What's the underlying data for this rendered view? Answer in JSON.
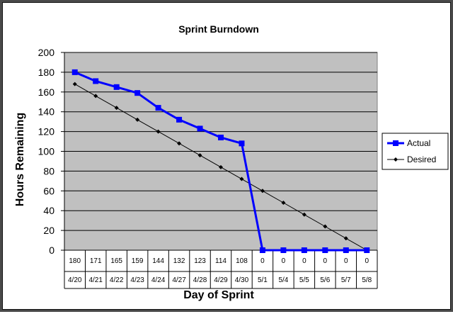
{
  "chart_data": {
    "type": "line",
    "title": "Sprint Burndown",
    "xlabel": "Day of Sprint",
    "ylabel": "Hours Remaining",
    "ylim": [
      0,
      200
    ],
    "yticks": [
      0,
      20,
      40,
      60,
      80,
      100,
      120,
      140,
      160,
      180,
      200
    ],
    "grid": true,
    "legend_position": "right",
    "plot_background": "#c0c0c0",
    "categories": [
      "4/20",
      "4/21",
      "4/22",
      "4/23",
      "4/24",
      "4/27",
      "4/28",
      "4/29",
      "4/30",
      "5/1",
      "5/4",
      "5/5",
      "5/6",
      "5/7",
      "5/8"
    ],
    "table_row": [
      "180",
      "171",
      "165",
      "159",
      "144",
      "132",
      "123",
      "114",
      "108",
      "0",
      "0",
      "0",
      "0",
      "0",
      "0"
    ],
    "series": [
      {
        "name": "Actual",
        "color": "#0000ff",
        "marker": "square",
        "values": [
          180,
          171,
          165,
          159,
          144,
          132,
          123,
          114,
          108,
          0,
          0,
          0,
          0,
          0,
          0
        ]
      },
      {
        "name": "Desired",
        "color": "#000000",
        "marker": "diamond",
        "values": [
          168,
          156,
          144,
          132,
          120,
          108,
          96,
          84,
          72,
          60,
          48,
          36,
          24,
          12,
          0
        ]
      }
    ]
  }
}
